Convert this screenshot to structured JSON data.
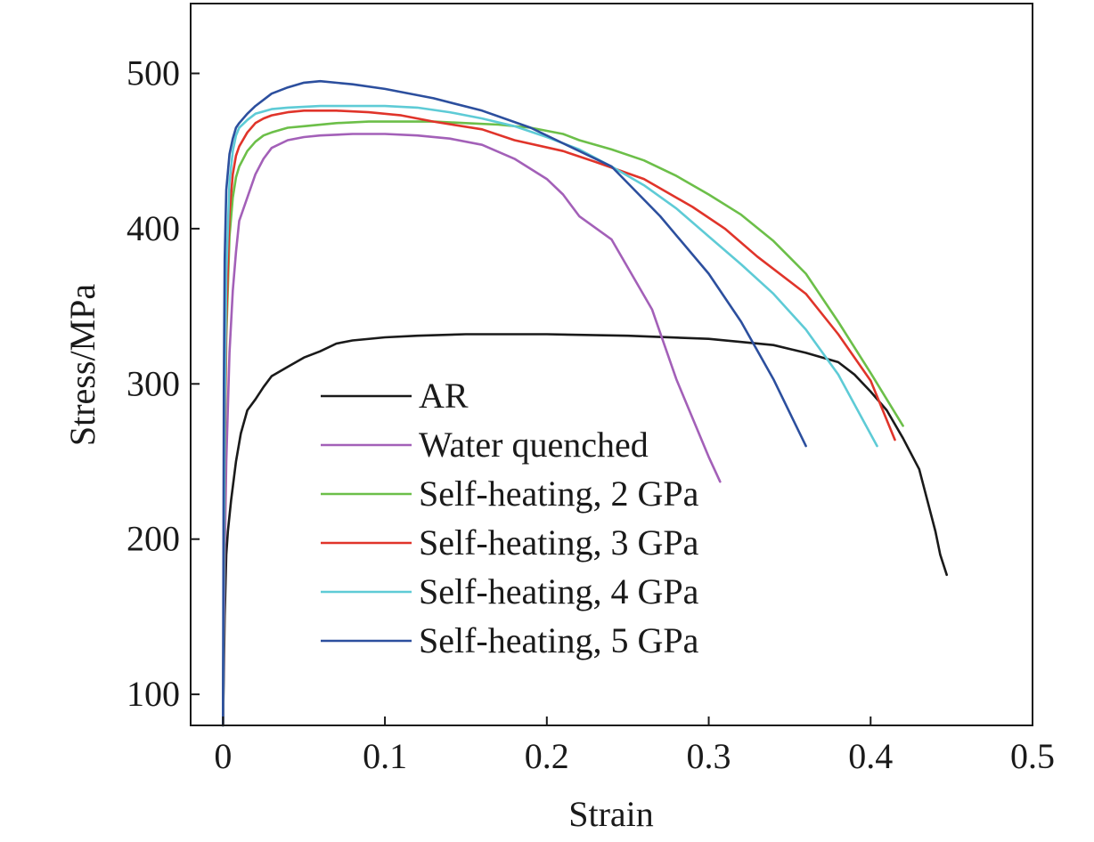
{
  "chart_data": {
    "type": "line",
    "xlabel": "Strain",
    "ylabel": "Stress/MPa",
    "xlim": [
      -0.02,
      0.5
    ],
    "ylim": [
      80,
      545
    ],
    "xticks": [
      0,
      0.1,
      0.2,
      0.3,
      0.4,
      0.5
    ],
    "xtick_labels": [
      "0",
      "0.1",
      "0.2",
      "0.3",
      "0.4",
      "0.5"
    ],
    "yticks": [
      100,
      200,
      300,
      400,
      500
    ],
    "ytick_labels": [
      "100",
      "200",
      "300",
      "400",
      "500"
    ],
    "grid": false,
    "legend_position": "center-left",
    "series": [
      {
        "name": "AR",
        "color": "#1a1a1a",
        "x": [
          0,
          0.001,
          0.002,
          0.003,
          0.005,
          0.008,
          0.011,
          0.015,
          0.02,
          0.025,
          0.03,
          0.04,
          0.05,
          0.06,
          0.07,
          0.08,
          0.1,
          0.12,
          0.15,
          0.2,
          0.25,
          0.3,
          0.32,
          0.34,
          0.36,
          0.38,
          0.39,
          0.4,
          0.41,
          0.42,
          0.43,
          0.435,
          0.44,
          0.443,
          0.447
        ],
        "y": [
          80,
          150,
          190,
          205,
          225,
          250,
          268,
          283,
          290,
          298,
          305,
          311,
          317,
          321,
          326,
          328,
          330,
          331,
          332,
          332,
          331,
          329,
          327,
          325,
          320,
          314,
          306,
          295,
          283,
          265,
          245,
          225,
          205,
          190,
          177
        ]
      },
      {
        "name": "Water quenched",
        "color": "#a360b8",
        "x": [
          0,
          0.001,
          0.002,
          0.004,
          0.006,
          0.008,
          0.01,
          0.015,
          0.02,
          0.025,
          0.03,
          0.04,
          0.05,
          0.06,
          0.08,
          0.1,
          0.12,
          0.14,
          0.16,
          0.18,
          0.2,
          0.21,
          0.22,
          0.24,
          0.265,
          0.28,
          0.3,
          0.307
        ],
        "y": [
          80,
          190,
          250,
          320,
          360,
          385,
          405,
          420,
          435,
          445,
          452,
          457,
          459,
          460,
          461,
          461,
          460,
          458,
          454,
          445,
          432,
          422,
          408,
          393,
          348,
          303,
          253,
          237
        ]
      },
      {
        "name": "Self-heating, 2 GPa",
        "color": "#6cbf49",
        "x": [
          0,
          0.001,
          0.002,
          0.004,
          0.006,
          0.008,
          0.01,
          0.015,
          0.02,
          0.025,
          0.03,
          0.04,
          0.05,
          0.07,
          0.09,
          0.11,
          0.13,
          0.15,
          0.17,
          0.19,
          0.21,
          0.22,
          0.24,
          0.26,
          0.28,
          0.3,
          0.32,
          0.34,
          0.36,
          0.38,
          0.4,
          0.42
        ],
        "y": [
          80,
          250,
          330,
          395,
          420,
          433,
          440,
          450,
          456,
          460,
          462,
          465,
          466,
          468,
          469,
          469,
          469,
          468,
          467,
          465,
          461,
          457,
          451,
          444,
          434,
          422,
          409,
          392,
          371,
          340,
          307,
          273
        ]
      },
      {
        "name": "Self-heating, 3 GPa",
        "color": "#e0342a",
        "x": [
          0,
          0.001,
          0.002,
          0.004,
          0.006,
          0.008,
          0.01,
          0.015,
          0.02,
          0.025,
          0.03,
          0.04,
          0.05,
          0.07,
          0.09,
          0.11,
          0.13,
          0.16,
          0.18,
          0.21,
          0.23,
          0.26,
          0.29,
          0.31,
          0.33,
          0.36,
          0.38,
          0.4,
          0.415
        ],
        "y": [
          80,
          260,
          340,
          410,
          435,
          447,
          453,
          462,
          468,
          471,
          473,
          475,
          476,
          476,
          475,
          473,
          469,
          464,
          457,
          450,
          443,
          432,
          414,
          400,
          382,
          358,
          332,
          302,
          264
        ]
      },
      {
        "name": "Self-heating, 4 GPa",
        "color": "#5ecbd6",
        "x": [
          0,
          0.001,
          0.002,
          0.004,
          0.006,
          0.008,
          0.01,
          0.015,
          0.02,
          0.03,
          0.04,
          0.06,
          0.08,
          0.1,
          0.12,
          0.14,
          0.16,
          0.18,
          0.2,
          0.22,
          0.24,
          0.26,
          0.28,
          0.3,
          0.32,
          0.34,
          0.36,
          0.38,
          0.404
        ],
        "y": [
          80,
          280,
          370,
          430,
          450,
          460,
          465,
          470,
          474,
          477,
          478,
          479,
          479,
          479,
          478,
          475,
          471,
          466,
          459,
          451,
          440,
          428,
          413,
          395,
          377,
          358,
          335,
          306,
          260
        ]
      },
      {
        "name": "Self-heating, 5 GPa",
        "color": "#2c4f9e",
        "x": [
          0,
          0.0005,
          0.001,
          0.002,
          0.004,
          0.006,
          0.008,
          0.01,
          0.015,
          0.02,
          0.03,
          0.04,
          0.05,
          0.06,
          0.08,
          0.1,
          0.13,
          0.16,
          0.19,
          0.21,
          0.24,
          0.27,
          0.3,
          0.32,
          0.34,
          0.36
        ],
        "y": [
          80,
          300,
          380,
          425,
          448,
          458,
          465,
          468,
          474,
          479,
          487,
          491,
          494,
          495,
          493,
          490,
          484,
          476,
          465,
          455,
          440,
          408,
          371,
          340,
          303,
          260
        ]
      }
    ]
  }
}
